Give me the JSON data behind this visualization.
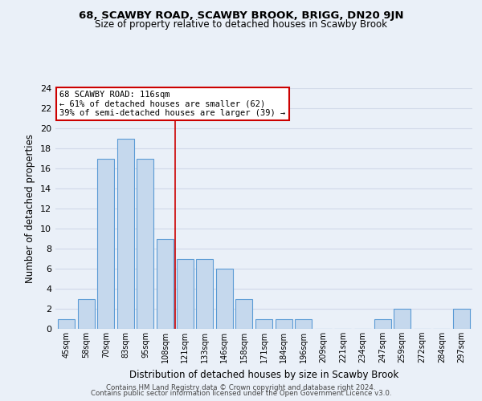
{
  "title": "68, SCAWBY ROAD, SCAWBY BROOK, BRIGG, DN20 9JN",
  "subtitle": "Size of property relative to detached houses in Scawby Brook",
  "xlabel": "Distribution of detached houses by size in Scawby Brook",
  "ylabel": "Number of detached properties",
  "bar_color": "#c5d8ed",
  "bar_edge_color": "#5b9bd5",
  "bin_labels": [
    "45sqm",
    "58sqm",
    "70sqm",
    "83sqm",
    "95sqm",
    "108sqm",
    "121sqm",
    "133sqm",
    "146sqm",
    "158sqm",
    "171sqm",
    "184sqm",
    "196sqm",
    "209sqm",
    "221sqm",
    "234sqm",
    "247sqm",
    "259sqm",
    "272sqm",
    "284sqm",
    "297sqm"
  ],
  "bin_counts": [
    1,
    3,
    17,
    19,
    17,
    9,
    7,
    7,
    6,
    3,
    1,
    1,
    1,
    0,
    0,
    0,
    1,
    2,
    0,
    0,
    2
  ],
  "ylim": [
    0,
    24
  ],
  "yticks": [
    0,
    2,
    4,
    6,
    8,
    10,
    12,
    14,
    16,
    18,
    20,
    22,
    24
  ],
  "property_line_x": 5.5,
  "annotation_title": "68 SCAWBY ROAD: 116sqm",
  "annotation_line1": "← 61% of detached houses are smaller (62)",
  "annotation_line2": "39% of semi-detached houses are larger (39) →",
  "annotation_box_color": "#ffffff",
  "annotation_box_edge": "#cc0000",
  "property_line_color": "#cc0000",
  "grid_color": "#d0d8e8",
  "background_color": "#eaf0f8",
  "footer1": "Contains HM Land Registry data © Crown copyright and database right 2024.",
  "footer2": "Contains public sector information licensed under the Open Government Licence v3.0."
}
